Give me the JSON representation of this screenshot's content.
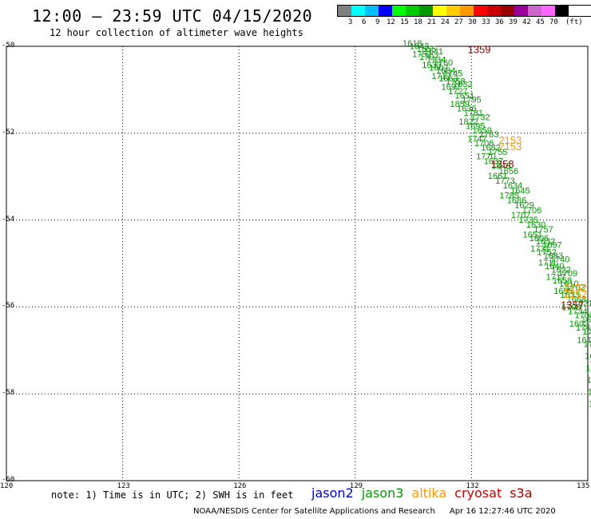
{
  "header": {
    "title": "12:00 – 23:59 UTC 04/15/2020",
    "subtitle": "12 hour collection of altimeter wave heights"
  },
  "scale": {
    "unit": "(ft)",
    "colors": [
      "#808080",
      "#00ffff",
      "#00bfff",
      "#0000ff",
      "#00ff00",
      "#00cc00",
      "#009900",
      "#ffff00",
      "#ffcc00",
      "#ff9900",
      "#ff0000",
      "#cc0000",
      "#990000",
      "#990099",
      "#cc66cc",
      "#ff66ff",
      "#000000"
    ],
    "labels": [
      "3",
      "6",
      "9",
      "12",
      "15",
      "18",
      "21",
      "24",
      "27",
      "30",
      "33",
      "36",
      "39",
      "42",
      "45",
      "70"
    ]
  },
  "axes": {
    "lon_min": 120,
    "lon_max": 135,
    "lat_min": -60,
    "lat_max": -50,
    "x_ticks": [
      "120",
      "123",
      "126",
      "129",
      "132",
      "135"
    ],
    "y_ticks": [
      "-50",
      "-52",
      "-54",
      "-56",
      "-58",
      "-60"
    ],
    "grid": "dotted"
  },
  "track": {
    "color": "#009900",
    "labels": [
      "1618",
      "1643",
      "1655",
      "1641",
      "1752",
      "1707",
      "1734",
      "1760",
      "1633",
      "1607",
      "1684",
      "1745",
      "1717",
      "1663",
      "1758",
      "1832",
      "1697",
      "1727",
      "1651",
      "1795",
      "1859",
      "1636",
      "1781",
      "1732",
      "1822",
      "1695",
      "1659",
      "1783",
      "1747",
      "1706",
      "1682",
      "1755",
      "1770",
      "1637",
      "1846",
      "1656",
      "1661",
      "1773",
      "1634",
      "1645",
      "1785",
      "1686",
      "1629",
      "1706",
      "1707",
      "1735",
      "1630",
      "1757",
      "1651",
      "1806",
      "1632",
      "1697",
      "1731",
      "1752",
      "1683",
      "1740",
      "1711",
      "1640",
      "1622",
      "1709",
      "1717",
      "1658",
      "1610",
      "1702",
      "1695",
      "1633",
      "1668",
      "1621",
      "1706",
      "1734",
      "1700",
      "1656",
      "1602",
      "1740",
      "1791",
      "1609",
      "1618",
      "1735",
      "1747",
      "1600",
      "1673",
      "1750",
      "1804",
      "1611",
      "1718",
      "1631",
      "1746",
      "1724",
      "1779",
      "1681",
      "1709",
      "1636",
      "1750",
      "1720",
      "1690",
      "1655",
      "1708"
    ]
  },
  "labels": [
    {
      "text": "1359",
      "color": "#990000",
      "lon": 131.9,
      "lat": -50.06
    },
    {
      "text": "2153",
      "color": "#ff9900",
      "lon": 132.7,
      "lat": -52.15
    },
    {
      "text": "2153",
      "color": "#ff9900",
      "lon": 132.7,
      "lat": -52.3
    },
    {
      "text": "1358",
      "color": "#990000",
      "lon": 132.5,
      "lat": -52.7
    },
    {
      "text": "2152",
      "color": "#ff9900",
      "lon": 134.4,
      "lat": -55.55
    },
    {
      "text": "2152",
      "color": "#ff9900",
      "lon": 134.5,
      "lat": -55.7
    },
    {
      "text": "1357",
      "color": "#990000",
      "lon": 134.3,
      "lat": -55.95
    }
  ],
  "note": "note: 1) Time is in UTC; 2) SWH is in feet",
  "legend": [
    {
      "name": "jason2",
      "color": "#0000cc"
    },
    {
      "name": "jason3",
      "color": "#009900"
    },
    {
      "name": "altika",
      "color": "#ff9900"
    },
    {
      "name": "cryosat",
      "color": "#cc0000"
    },
    {
      "name": "s3a",
      "color": "#990000"
    }
  ],
  "footer": {
    "credit": "NOAA/NESDIS Center for Satellite Applications and Research",
    "timestamp": "Apr 16 12:27:46 UTC 2020"
  }
}
